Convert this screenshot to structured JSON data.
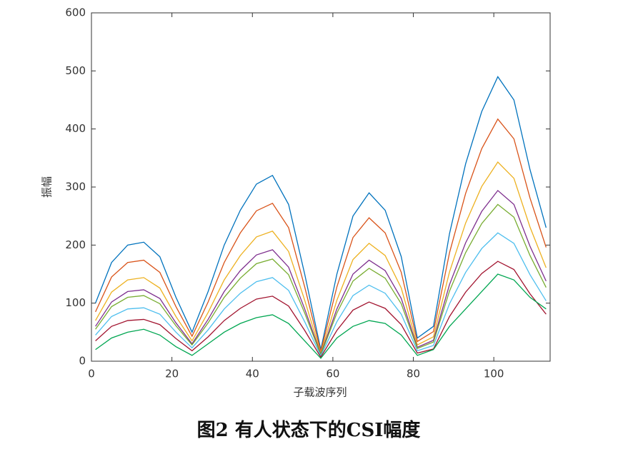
{
  "chart_data": {
    "type": "line",
    "caption": "图2  有人状态下的CSI幅度",
    "x_label": "子载波序列",
    "y_label": "振幅",
    "x": [
      1,
      5,
      9,
      13,
      17,
      21,
      25,
      29,
      33,
      37,
      41,
      45,
      49,
      53,
      57,
      61,
      65,
      69,
      73,
      77,
      81,
      85,
      89,
      93,
      97,
      101,
      105,
      109,
      113
    ],
    "series": [
      {
        "color": "#0072BD",
        "values": [
          100,
          170,
          200,
          205,
          180,
          110,
          50,
          120,
          200,
          260,
          305,
          320,
          270,
          150,
          20,
          150,
          250,
          290,
          260,
          180,
          40,
          60,
          220,
          340,
          430,
          490,
          450,
          330,
          230
        ]
      },
      {
        "color": "#D95319",
        "values": [
          85,
          145,
          170,
          174,
          153,
          94,
          43,
          102,
          170,
          221,
          259,
          272,
          230,
          128,
          17,
          128,
          213,
          247,
          221,
          153,
          34,
          51,
          187,
          289,
          366,
          417,
          383,
          281,
          196
        ]
      },
      {
        "color": "#EDB120",
        "values": [
          70,
          119,
          140,
          144,
          126,
          77,
          35,
          84,
          140,
          182,
          214,
          224,
          189,
          105,
          14,
          105,
          175,
          203,
          182,
          126,
          28,
          42,
          154,
          238,
          301,
          343,
          315,
          231,
          161
        ]
      },
      {
        "color": "#7E2F8E",
        "values": [
          60,
          102,
          120,
          123,
          108,
          66,
          30,
          72,
          120,
          156,
          183,
          192,
          162,
          90,
          12,
          90,
          150,
          174,
          156,
          108,
          24,
          36,
          132,
          204,
          258,
          294,
          270,
          198,
          138
        ]
      },
      {
        "color": "#77AC30",
        "values": [
          55,
          94,
          110,
          113,
          99,
          61,
          28,
          66,
          110,
          143,
          168,
          176,
          149,
          83,
          11,
          83,
          138,
          160,
          143,
          99,
          22,
          33,
          121,
          187,
          237,
          270,
          248,
          182,
          127
        ]
      },
      {
        "color": "#4DBEEE",
        "values": [
          45,
          77,
          90,
          92,
          81,
          50,
          23,
          54,
          90,
          117,
          137,
          144,
          122,
          68,
          9,
          68,
          113,
          131,
          117,
          81,
          18,
          27,
          99,
          153,
          194,
          221,
          203,
          149,
          104
        ]
      },
      {
        "color": "#A2142F",
        "values": [
          35,
          60,
          70,
          72,
          63,
          39,
          18,
          42,
          70,
          91,
          107,
          112,
          95,
          53,
          7,
          53,
          88,
          102,
          91,
          63,
          14,
          21,
          77,
          119,
          151,
          172,
          158,
          116,
          81
        ]
      },
      {
        "color": "#00A651",
        "values": [
          20,
          40,
          50,
          55,
          45,
          25,
          10,
          30,
          50,
          65,
          75,
          80,
          65,
          35,
          5,
          40,
          60,
          70,
          65,
          45,
          10,
          20,
          60,
          90,
          120,
          150,
          140,
          110,
          90
        ]
      }
    ],
    "xlim": [
      0,
      114
    ],
    "xticks": [
      0,
      20,
      40,
      60,
      80,
      100
    ],
    "ylim": [
      0,
      600
    ],
    "yticks": [
      0,
      100,
      200,
      300,
      400,
      500,
      600
    ]
  }
}
